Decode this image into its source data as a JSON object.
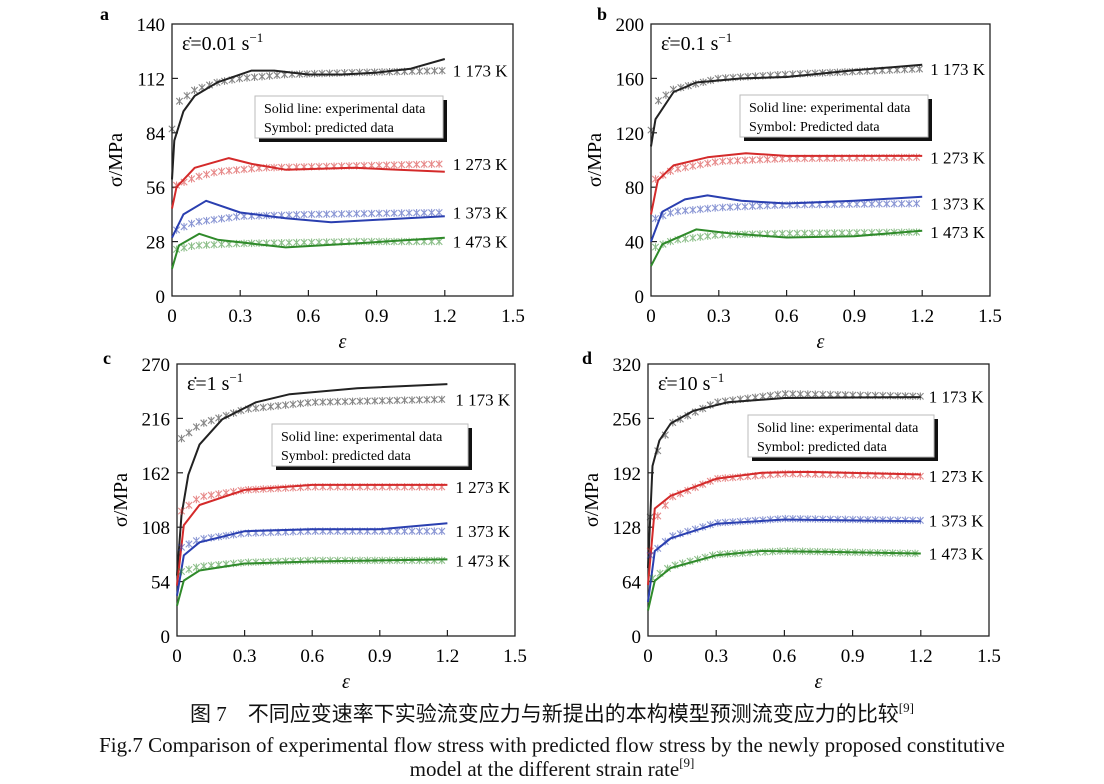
{
  "chart_data": [
    {
      "type": "line",
      "panel": "a",
      "rate_label": "ε̇=0.01 s",
      "rate_exp": "−1",
      "xlabel": "ε",
      "ylabel": "σ/MPa",
      "xlim": [
        0,
        1.5
      ],
      "ylim": [
        0,
        140
      ],
      "xticks": [
        "0",
        "0.3",
        "0.6",
        "0.9",
        "1.2",
        "1.5"
      ],
      "yticks": [
        "0",
        "28",
        "56",
        "84",
        "112",
        "140"
      ],
      "legend": [
        "Solid line: experimental data",
        "Symbol: predicted data"
      ],
      "series": [
        {
          "name": "1 173 K",
          "color": "#222222",
          "experimental": [
            [
              0,
              60
            ],
            [
              0.01,
              80
            ],
            [
              0.05,
              95
            ],
            [
              0.1,
              103
            ],
            [
              0.2,
              110
            ],
            [
              0.35,
              116
            ],
            [
              0.45,
              116
            ],
            [
              0.6,
              114
            ],
            [
              0.75,
              114
            ],
            [
              0.9,
              115
            ],
            [
              1.05,
              117
            ],
            [
              1.2,
              122
            ]
          ],
          "predicted": [
            [
              0,
              86
            ],
            [
              0.03,
              100
            ],
            [
              0.1,
              106
            ],
            [
              0.2,
              110
            ],
            [
              0.3,
              112
            ],
            [
              0.5,
              114
            ],
            [
              0.8,
              115
            ],
            [
              1.2,
              116
            ]
          ]
        },
        {
          "name": "1 273 K",
          "color": "#d42a2a",
          "experimental": [
            [
              0,
              45
            ],
            [
              0.02,
              56
            ],
            [
              0.1,
              66
            ],
            [
              0.25,
              71
            ],
            [
              0.35,
              68
            ],
            [
              0.5,
              65
            ],
            [
              0.8,
              66
            ],
            [
              1.2,
              64
            ]
          ],
          "predicted": [
            [
              0.02,
              57
            ],
            [
              0.1,
              61
            ],
            [
              0.2,
              64
            ],
            [
              0.4,
              66
            ],
            [
              0.8,
              67
            ],
            [
              1.2,
              68
            ]
          ]
        },
        {
          "name": "1 373 K",
          "color": "#2a3fb0",
          "experimental": [
            [
              0,
              30
            ],
            [
              0.05,
              42
            ],
            [
              0.15,
              49
            ],
            [
              0.3,
              43
            ],
            [
              0.5,
              40
            ],
            [
              0.7,
              38
            ],
            [
              1.2,
              41
            ]
          ],
          "predicted": [
            [
              0.02,
              34
            ],
            [
              0.1,
              38
            ],
            [
              0.3,
              41
            ],
            [
              0.6,
              42
            ],
            [
              1.2,
              43
            ]
          ]
        },
        {
          "name": "1 473 K",
          "color": "#2f8a2a",
          "experimental": [
            [
              0,
              14
            ],
            [
              0.03,
              26
            ],
            [
              0.12,
              32
            ],
            [
              0.2,
              29
            ],
            [
              0.5,
              25
            ],
            [
              0.8,
              27
            ],
            [
              1.2,
              30
            ]
          ],
          "predicted": [
            [
              0.02,
              24
            ],
            [
              0.1,
              26
            ],
            [
              0.3,
              27
            ],
            [
              0.8,
              28
            ],
            [
              1.2,
              28
            ]
          ]
        }
      ]
    },
    {
      "type": "line",
      "panel": "b",
      "rate_label": "ε̇=0.1 s",
      "rate_exp": "−1",
      "xlabel": "ε",
      "ylabel": "σ/MPa",
      "xlim": [
        0,
        1.5
      ],
      "ylim": [
        0,
        200
      ],
      "xticks": [
        "0",
        "0.3",
        "0.6",
        "0.9",
        "1.2",
        "1.5"
      ],
      "yticks": [
        "0",
        "40",
        "80",
        "120",
        "160",
        "200"
      ],
      "legend": [
        "Solid line: experimental data",
        "Symbol: Predicted data"
      ],
      "series": [
        {
          "name": "1 173 K",
          "color": "#222222",
          "experimental": [
            [
              0,
              110
            ],
            [
              0.02,
              130
            ],
            [
              0.1,
              150
            ],
            [
              0.2,
              157
            ],
            [
              0.4,
              160
            ],
            [
              0.6,
              161
            ],
            [
              0.9,
              166
            ],
            [
              1.2,
              170
            ]
          ],
          "predicted": [
            [
              0,
              122
            ],
            [
              0.02,
              142
            ],
            [
              0.1,
              152
            ],
            [
              0.3,
              160
            ],
            [
              0.6,
              163
            ],
            [
              1.2,
              167
            ]
          ]
        },
        {
          "name": "1 273 K",
          "color": "#d42a2a",
          "experimental": [
            [
              0,
              60
            ],
            [
              0.03,
              85
            ],
            [
              0.1,
              96
            ],
            [
              0.25,
              102
            ],
            [
              0.42,
              105
            ],
            [
              0.6,
              103
            ],
            [
              1.2,
              103
            ]
          ],
          "predicted": [
            [
              0.02,
              86
            ],
            [
              0.1,
              93
            ],
            [
              0.3,
              99
            ],
            [
              0.6,
              101
            ],
            [
              1.2,
              102
            ]
          ]
        },
        {
          "name": "1 373 K",
          "color": "#2a3fb0",
          "experimental": [
            [
              0,
              40
            ],
            [
              0.05,
              62
            ],
            [
              0.15,
              71
            ],
            [
              0.25,
              74
            ],
            [
              0.4,
              70
            ],
            [
              0.6,
              68
            ],
            [
              0.9,
              70
            ],
            [
              1.2,
              73
            ]
          ],
          "predicted": [
            [
              0.02,
              57
            ],
            [
              0.1,
              62
            ],
            [
              0.3,
              65
            ],
            [
              0.6,
              67
            ],
            [
              1.2,
              68
            ]
          ]
        },
        {
          "name": "1 473 K",
          "color": "#2f8a2a",
          "experimental": [
            [
              0,
              22
            ],
            [
              0.05,
              38
            ],
            [
              0.2,
              49
            ],
            [
              0.35,
              46
            ],
            [
              0.6,
              43
            ],
            [
              0.9,
              44
            ],
            [
              1.2,
              48
            ]
          ],
          "predicted": [
            [
              0.02,
              36
            ],
            [
              0.1,
              41
            ],
            [
              0.3,
              45
            ],
            [
              0.6,
              46
            ],
            [
              1.2,
              47
            ]
          ]
        }
      ]
    },
    {
      "type": "line",
      "panel": "c",
      "rate_label": "ε̇=1 s",
      "rate_exp": "−1",
      "xlabel": "ε",
      "ylabel": "σ/MPa",
      "xlim": [
        0,
        1.5
      ],
      "ylim": [
        0,
        270
      ],
      "xticks": [
        "0",
        "0.3",
        "0.6",
        "0.9",
        "1.2",
        "1.5"
      ],
      "yticks": [
        "0",
        "54",
        "108",
        "162",
        "216",
        "270"
      ],
      "legend": [
        "Solid line: experimental data",
        "Symbol: predicted data"
      ],
      "series": [
        {
          "name": "1 173 K",
          "color": "#222222",
          "experimental": [
            [
              0,
              60
            ],
            [
              0.02,
              120
            ],
            [
              0.05,
              160
            ],
            [
              0.1,
              190
            ],
            [
              0.2,
              215
            ],
            [
              0.35,
              232
            ],
            [
              0.5,
              240
            ],
            [
              0.8,
              246
            ],
            [
              1.2,
              250
            ]
          ],
          "predicted": [
            [
              0.02,
              196
            ],
            [
              0.1,
              210
            ],
            [
              0.3,
              225
            ],
            [
              0.6,
              232
            ],
            [
              1.2,
              235
            ]
          ]
        },
        {
          "name": "1 273 K",
          "color": "#d42a2a",
          "experimental": [
            [
              0,
              50
            ],
            [
              0.03,
              110
            ],
            [
              0.1,
              130
            ],
            [
              0.3,
              145
            ],
            [
              0.6,
              150
            ],
            [
              1.2,
              150
            ]
          ],
          "predicted": [
            [
              0.02,
              124
            ],
            [
              0.1,
              138
            ],
            [
              0.3,
              145
            ],
            [
              0.6,
              148
            ],
            [
              1.2,
              148
            ]
          ]
        },
        {
          "name": "1 373 K",
          "color": "#2a3fb0",
          "experimental": [
            [
              0,
              40
            ],
            [
              0.03,
              80
            ],
            [
              0.1,
              93
            ],
            [
              0.3,
              104
            ],
            [
              0.6,
              106
            ],
            [
              0.9,
              106
            ],
            [
              1.2,
              112
            ]
          ],
          "predicted": [
            [
              0.02,
              88
            ],
            [
              0.1,
              96
            ],
            [
              0.3,
              102
            ],
            [
              0.6,
              104
            ],
            [
              1.2,
              104
            ]
          ]
        },
        {
          "name": "1 473 K",
          "color": "#2f8a2a",
          "experimental": [
            [
              0,
              30
            ],
            [
              0.03,
              55
            ],
            [
              0.1,
              65
            ],
            [
              0.3,
              72
            ],
            [
              0.6,
              74
            ],
            [
              1.2,
              76
            ]
          ],
          "predicted": [
            [
              0.02,
              64
            ],
            [
              0.1,
              69
            ],
            [
              0.3,
              73
            ],
            [
              0.6,
              75
            ],
            [
              1.2,
              75
            ]
          ]
        }
      ]
    },
    {
      "type": "line",
      "panel": "d",
      "rate_label": "ε̇=10 s",
      "rate_exp": "−1",
      "xlabel": "ε",
      "ylabel": "σ/MPa",
      "xlim": [
        0,
        1.5
      ],
      "ylim": [
        0,
        320
      ],
      "xticks": [
        "0",
        "0.3",
        "0.6",
        "0.9",
        "1.2",
        "1.5"
      ],
      "yticks": [
        "0",
        "64",
        "128",
        "192",
        "256",
        "320"
      ],
      "legend": [
        "Solid line: experimental data",
        "Symbol: predicted data"
      ],
      "series": [
        {
          "name": "1 173 K",
          "color": "#222222",
          "experimental": [
            [
              0,
              80
            ],
            [
              0.02,
              200
            ],
            [
              0.05,
              230
            ],
            [
              0.1,
              250
            ],
            [
              0.2,
              265
            ],
            [
              0.35,
              275
            ],
            [
              0.6,
              280
            ],
            [
              1.2,
              281
            ]
          ],
          "predicted": [
            [
              0.01,
              140
            ],
            [
              0.02,
              205
            ],
            [
              0.1,
              250
            ],
            [
              0.3,
              275
            ],
            [
              0.6,
              285
            ],
            [
              1.2,
              282
            ]
          ]
        },
        {
          "name": "1 273 K",
          "color": "#d42a2a",
          "experimental": [
            [
              0,
              60
            ],
            [
              0.03,
              150
            ],
            [
              0.1,
              165
            ],
            [
              0.3,
              185
            ],
            [
              0.5,
              192
            ],
            [
              0.7,
              193
            ],
            [
              1.2,
              190
            ]
          ],
          "predicted": [
            [
              0.01,
              100
            ],
            [
              0.04,
              140
            ],
            [
              0.1,
              163
            ],
            [
              0.3,
              185
            ],
            [
              0.6,
              191
            ],
            [
              1.2,
              188
            ]
          ]
        },
        {
          "name": "1 373 K",
          "color": "#2a3fb0",
          "experimental": [
            [
              0,
              40
            ],
            [
              0.03,
              100
            ],
            [
              0.1,
              115
            ],
            [
              0.3,
              132
            ],
            [
              0.6,
              137
            ],
            [
              1.2,
              135
            ]
          ],
          "predicted": [
            [
              0.01,
              95
            ],
            [
              0.1,
              117
            ],
            [
              0.3,
              133
            ],
            [
              0.6,
              138
            ],
            [
              1.2,
              136
            ]
          ]
        },
        {
          "name": "1 473 K",
          "color": "#2f8a2a",
          "experimental": [
            [
              0,
              30
            ],
            [
              0.03,
              65
            ],
            [
              0.1,
              80
            ],
            [
              0.3,
              95
            ],
            [
              0.5,
              100
            ],
            [
              0.8,
              99
            ],
            [
              1.2,
              97
            ]
          ],
          "predicted": [
            [
              0.02,
              68
            ],
            [
              0.1,
              82
            ],
            [
              0.3,
              96
            ],
            [
              0.6,
              100
            ],
            [
              1.2,
              97
            ]
          ]
        }
      ]
    }
  ],
  "caption": {
    "cn": "图 7　不同应变速率下实验流变应力与新提出的本构模型预测流变应力的比较",
    "cn_ref": "[9]",
    "en_line1": "Fig.7 Comparison of experimental flow stress with predicted flow stress by the newly proposed constitutive",
    "en_line2": "model at the different strain rate",
    "en_ref": "[9]"
  }
}
